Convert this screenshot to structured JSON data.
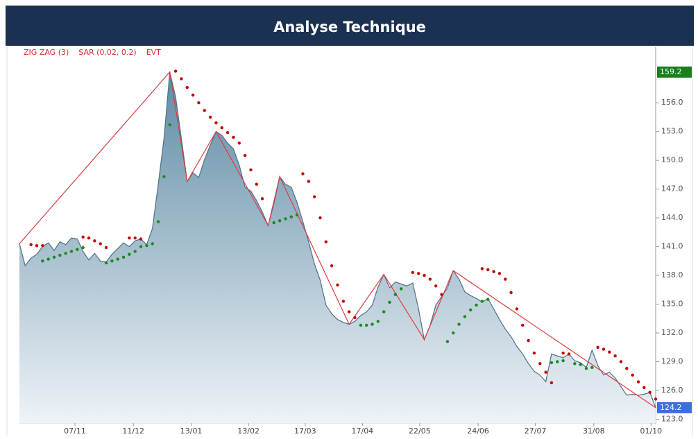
{
  "chart_data": {
    "type": "line",
    "title": "Analyse Technique",
    "indicators": [
      "ZIG ZAG (3)",
      "SAR (0.02, 0.2)",
      "EVT"
    ],
    "indicator_color": "#d42a2a",
    "xlim": [
      0,
      110
    ],
    "xticks": [
      {
        "value": 9.6,
        "label": "07/11"
      },
      {
        "value": 19.7,
        "label": "11/12"
      },
      {
        "value": 29.7,
        "label": "13/01"
      },
      {
        "value": 39.6,
        "label": "13/02"
      },
      {
        "value": 49.4,
        "label": "17/03"
      },
      {
        "value": 59.3,
        "label": "17/04"
      },
      {
        "value": 69.2,
        "label": "22/05"
      },
      {
        "value": 79.3,
        "label": "24/06"
      },
      {
        "value": 89.2,
        "label": "27/07"
      },
      {
        "value": 99.3,
        "label": "31/08"
      },
      {
        "value": 109.2,
        "label": "01/10"
      }
    ],
    "ylim": [
      122.6,
      161.8
    ],
    "yticks": [
      {
        "value": 123,
        "label": "123.0"
      },
      {
        "value": 126,
        "label": "126.0"
      },
      {
        "value": 129,
        "label": "129.0"
      },
      {
        "value": 132,
        "label": "132.0"
      },
      {
        "value": 135,
        "label": "135.0"
      },
      {
        "value": 138,
        "label": "138.0"
      },
      {
        "value": 141,
        "label": "141.0"
      },
      {
        "value": 144,
        "label": "144.0"
      },
      {
        "value": 147,
        "label": "147.0"
      },
      {
        "value": 150,
        "label": "150.0"
      },
      {
        "value": 153,
        "label": "153.0"
      },
      {
        "value": 156,
        "label": "156.0"
      }
    ],
    "series": [
      {
        "color": "#4f6f84",
        "x": [
          0,
          1,
          2,
          3,
          4,
          5,
          6,
          7,
          8,
          9,
          10,
          11,
          12,
          13,
          14,
          15,
          16,
          17,
          18,
          19,
          20,
          21,
          22,
          23,
          24,
          25,
          26,
          27,
          28,
          29,
          30,
          31,
          32,
          33,
          34,
          35,
          36,
          37,
          38,
          39,
          40,
          41,
          42,
          43,
          44,
          45,
          46,
          47,
          48,
          49,
          50,
          51,
          52,
          53,
          54,
          55,
          56,
          57,
          58,
          59,
          60,
          61,
          62,
          63,
          64,
          65,
          66,
          67,
          68,
          69,
          70,
          71,
          72,
          73,
          74,
          75,
          76,
          77,
          78,
          79,
          80,
          81,
          82,
          83,
          84,
          85,
          86,
          87,
          88,
          89,
          90,
          91,
          92,
          93,
          94,
          95,
          96,
          97,
          98,
          99,
          100,
          101,
          102,
          103,
          104,
          105,
          106,
          107,
          108,
          109,
          110
        ],
        "values": [
          141.3,
          139.0,
          139.8,
          140.2,
          141.0,
          141.4,
          140.6,
          141.5,
          141.2,
          141.9,
          141.8,
          140.5,
          139.6,
          140.3,
          139.5,
          139.4,
          140.2,
          140.8,
          141.4,
          141.0,
          141.6,
          141.8,
          141.2,
          142.9,
          147.5,
          152.3,
          159.2,
          156.6,
          152.3,
          147.8,
          148.7,
          148.2,
          150.1,
          151.6,
          153.0,
          152.6,
          151.8,
          151.2,
          149.5,
          147.2,
          146.8,
          145.8,
          144.6,
          143.2,
          145.5,
          148.3,
          147.5,
          147.2,
          145.6,
          143.6,
          141.5,
          139.2,
          137.5,
          134.9,
          134.0,
          133.4,
          133.1,
          132.9,
          133.2,
          133.8,
          134.2,
          134.9,
          136.8,
          138.1,
          136.7,
          137.3,
          137.1,
          136.9,
          137.2,
          134.5,
          131.3,
          132.8,
          134.9,
          135.8,
          136.7,
          138.5,
          137.6,
          136.3,
          135.9,
          135.6,
          135.2,
          135.6,
          134.5,
          133.4,
          132.4,
          131.6,
          130.6,
          129.8,
          128.8,
          128.0,
          127.6,
          126.9,
          129.8,
          129.6,
          129.4,
          129.8,
          129.1,
          128.9,
          128.4,
          130.2,
          128.6,
          127.6,
          127.9,
          127.3,
          126.4,
          125.5,
          125.6,
          125.5,
          125.6,
          125.8,
          124.2
        ]
      }
    ],
    "zigzag": {
      "color": "#e0393e",
      "x": [
        0,
        26,
        29,
        34,
        43,
        45,
        57,
        63,
        70,
        75,
        110
      ],
      "values": [
        141.3,
        159.2,
        147.8,
        153.0,
        143.2,
        148.3,
        132.9,
        138.1,
        131.3,
        138.5,
        124.2
      ]
    },
    "sar_above": {
      "color": "#c40000",
      "x": [
        2,
        3,
        4,
        11,
        12,
        13,
        14,
        15,
        19,
        20,
        21,
        27,
        28,
        29,
        30,
        31,
        32,
        33,
        34,
        35,
        36,
        37,
        38,
        39,
        40,
        41,
        42,
        49,
        50,
        51,
        52,
        53,
        54,
        55,
        56,
        57,
        58,
        68,
        69,
        70,
        71,
        72,
        73,
        80,
        81,
        82,
        83,
        84,
        85,
        86,
        87,
        88,
        89,
        90,
        91,
        92,
        94,
        95,
        100,
        101,
        102,
        103,
        104,
        105,
        106,
        107,
        108,
        109,
        110
      ],
      "values": [
        141.2,
        141.1,
        141.1,
        142.0,
        141.9,
        141.6,
        141.3,
        140.9,
        141.9,
        141.9,
        141.8,
        159.3,
        158.5,
        157.6,
        156.8,
        156.0,
        155.2,
        154.5,
        153.9,
        153.4,
        152.9,
        152.4,
        151.8,
        150.5,
        149.0,
        147.5,
        146.0,
        148.6,
        147.8,
        146.2,
        144.0,
        141.5,
        139.0,
        137.0,
        135.3,
        134.2,
        133.6,
        138.3,
        138.2,
        138.0,
        137.6,
        136.9,
        136.0,
        138.7,
        138.6,
        138.4,
        138.2,
        137.6,
        136.2,
        134.5,
        132.8,
        131.2,
        129.9,
        128.8,
        127.9,
        126.8,
        129.9,
        129.8,
        130.5,
        130.3,
        130.0,
        129.6,
        129.0,
        128.3,
        127.6,
        126.9,
        126.3,
        125.8,
        125.1
      ]
    },
    "sar_below": {
      "color": "#1a8a1a",
      "x": [
        4,
        5,
        6,
        7,
        8,
        9,
        10,
        11,
        15,
        16,
        17,
        18,
        19,
        20,
        21,
        22,
        23,
        24,
        25,
        26,
        44,
        45,
        46,
        47,
        48,
        59,
        60,
        61,
        62,
        63,
        64,
        65,
        66,
        74,
        75,
        76,
        77,
        78,
        79,
        80,
        81,
        92,
        93,
        94,
        96,
        97,
        98,
        99
      ],
      "values": [
        139.5,
        139.7,
        139.9,
        140.1,
        140.3,
        140.5,
        140.7,
        140.9,
        139.3,
        139.5,
        139.7,
        139.9,
        140.2,
        140.5,
        141.0,
        141.1,
        141.3,
        143.6,
        148.3,
        153.7,
        143.5,
        143.7,
        143.9,
        144.1,
        144.3,
        132.8,
        132.8,
        132.9,
        133.2,
        134.2,
        135.2,
        136.0,
        136.6,
        131.1,
        132.0,
        132.9,
        133.7,
        134.4,
        134.9,
        135.3,
        135.5,
        128.9,
        129.0,
        129.1,
        128.8,
        128.7,
        128.3,
        128.4
      ]
    },
    "markers": [
      {
        "value": 159.2,
        "color": "#1a7f1a"
      },
      {
        "value": 124.2,
        "color": "#3b6fdc"
      }
    ]
  }
}
